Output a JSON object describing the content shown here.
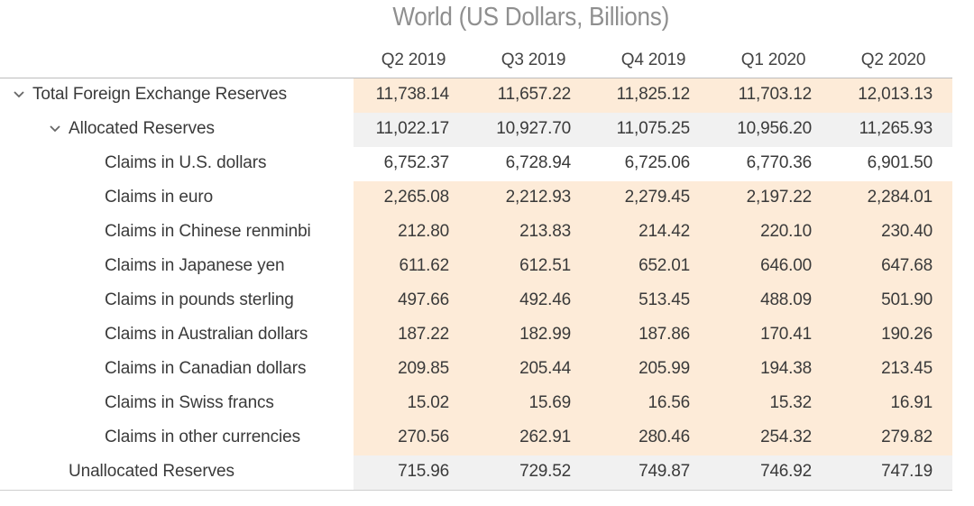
{
  "title": "World (US Dollars, Billions)",
  "columns": [
    "Q2 2019",
    "Q3 2019",
    "Q4 2019",
    "Q1 2020",
    "Q2 2020"
  ],
  "rows": [
    {
      "label": "Total Foreign Exchange Reserves",
      "values": [
        "11,738.14",
        "11,657.22",
        "11,825.12",
        "11,703.12",
        "12,013.13"
      ],
      "expanded": true
    },
    {
      "label": "Allocated Reserves",
      "values": [
        "11,022.17",
        "10,927.70",
        "11,075.25",
        "10,956.20",
        "11,265.93"
      ],
      "expanded": true
    },
    {
      "label": "Claims in U.S. dollars",
      "values": [
        "6,752.37",
        "6,728.94",
        "6,725.06",
        "6,770.36",
        "6,901.50"
      ]
    },
    {
      "label": "Claims in euro",
      "values": [
        "2,265.08",
        "2,212.93",
        "2,279.45",
        "2,197.22",
        "2,284.01"
      ]
    },
    {
      "label": "Claims in Chinese renminbi",
      "values": [
        "212.80",
        "213.83",
        "214.42",
        "220.10",
        "230.40"
      ]
    },
    {
      "label": "Claims in Japanese yen",
      "values": [
        "611.62",
        "612.51",
        "652.01",
        "646.00",
        "647.68"
      ]
    },
    {
      "label": "Claims in pounds sterling",
      "values": [
        "497.66",
        "492.46",
        "513.45",
        "488.09",
        "501.90"
      ]
    },
    {
      "label": "Claims in Australian dollars",
      "values": [
        "187.22",
        "182.99",
        "187.86",
        "170.41",
        "190.26"
      ]
    },
    {
      "label": "Claims in Canadian dollars",
      "values": [
        "209.85",
        "205.44",
        "205.99",
        "194.38",
        "213.45"
      ]
    },
    {
      "label": "Claims in Swiss francs",
      "values": [
        "15.02",
        "15.69",
        "16.56",
        "15.32",
        "16.91"
      ]
    },
    {
      "label": "Claims in other currencies",
      "values": [
        "270.56",
        "262.91",
        "280.46",
        "254.32",
        "279.82"
      ]
    },
    {
      "label": "Unallocated Reserves",
      "values": [
        "715.96",
        "729.52",
        "749.87",
        "746.92",
        "747.19"
      ]
    }
  ],
  "colors": {
    "peach": "#fdebd8",
    "grey": "#f1f1f1",
    "title": "#8f8f8f"
  }
}
